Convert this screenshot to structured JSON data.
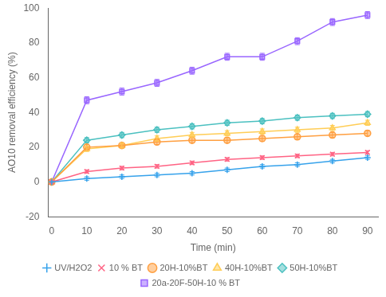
{
  "chart_data": {
    "type": "line",
    "xlabel": "Time (min)",
    "ylabel": "AO10 removal efficiency (%)",
    "x": [
      0,
      10,
      20,
      30,
      40,
      50,
      60,
      70,
      80,
      90
    ],
    "series": [
      {
        "name": "UV/H2O2",
        "marker": "plus",
        "values": [
          0,
          2,
          3,
          4,
          5,
          7,
          9,
          10,
          12,
          14
        ],
        "errors": [
          0,
          1,
          1,
          1,
          1,
          1,
          1,
          1,
          1,
          1
        ]
      },
      {
        "name": "10 % BT",
        "marker": "cross",
        "values": [
          0,
          6,
          8,
          9,
          11,
          13,
          14,
          15,
          16,
          17
        ],
        "errors": [
          0,
          1,
          1,
          1,
          1,
          1,
          1,
          1,
          1,
          1
        ]
      },
      {
        "name": "20H-10%BT",
        "marker": "circle",
        "values": [
          0,
          20,
          21,
          23,
          24,
          24,
          25,
          26,
          27,
          28
        ],
        "errors": [
          0,
          1.5,
          1.5,
          1.5,
          1.5,
          1.5,
          1.5,
          1.5,
          1.5,
          1.5
        ]
      },
      {
        "name": "40H-10%BT",
        "marker": "triangle",
        "values": [
          0,
          19,
          21,
          25,
          27,
          28,
          29,
          30,
          31,
          34
        ],
        "errors": [
          0,
          1.5,
          1.5,
          1.5,
          1.5,
          1.5,
          1.5,
          1.5,
          1.5,
          1.5
        ]
      },
      {
        "name": "50H-10%BT",
        "marker": "diamond",
        "values": [
          0,
          24,
          27,
          30,
          32,
          34,
          35,
          37,
          38,
          39
        ],
        "errors": [
          0,
          1.5,
          1.5,
          1.5,
          1.5,
          1.5,
          1.5,
          1.5,
          1.5,
          1.5
        ]
      },
      {
        "name": "20a-20F-50H-10 % BT",
        "marker": "square",
        "values": [
          0,
          47,
          52,
          57,
          64,
          72,
          72,
          81,
          92,
          96
        ],
        "errors": [
          0,
          2,
          2,
          2,
          2,
          2,
          2,
          2,
          2,
          2
        ]
      }
    ],
    "xlim": [
      -1,
      93
    ],
    "xticks": [
      0,
      10,
      20,
      30,
      40,
      50,
      60,
      70,
      80,
      90
    ],
    "ylim": [
      -20,
      100
    ],
    "yticks": [
      -20,
      0,
      20,
      40,
      60,
      80,
      100
    ],
    "grid": false,
    "legend": "bottom"
  }
}
